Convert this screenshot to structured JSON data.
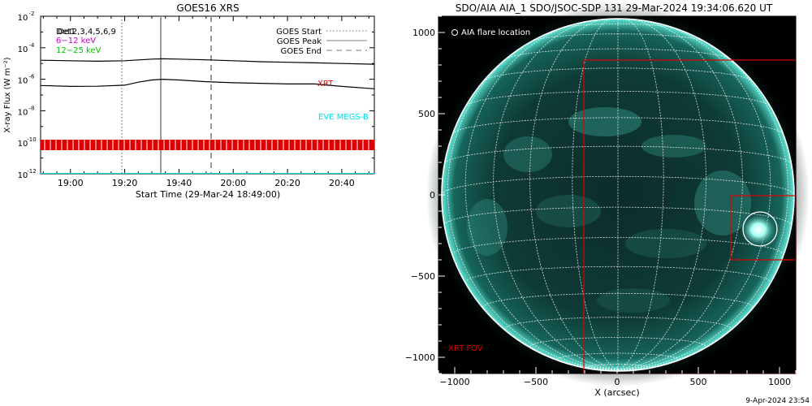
{
  "chart_data": [
    {
      "type": "line",
      "title": "GOES16 XRS",
      "xlabel": "Start Time (29-Mar-24 18:49:00)",
      "ylabel": "X-ray Flux (W m⁻²)",
      "y_scale": "log",
      "ylim": [
        1e-12,
        0.01
      ],
      "xlim_minutes_after_start": [
        0,
        123
      ],
      "x_tick_labels": [
        "19:00",
        "19:20",
        "19:40",
        "20:00",
        "20:20",
        "20:40"
      ],
      "y_tick_labels": [
        "10",
        "10",
        "10",
        "10",
        "10",
        "10"
      ],
      "y_tick_exponents": [
        "-2",
        "-4",
        "-6",
        "-8",
        "-10",
        "-12"
      ],
      "legend_left": [
        {
          "label": "Det1",
          "color": "#000000"
        },
        {
          "label": "Det2,3,4,5,6,9",
          "color": "#000000"
        },
        {
          "label": "6−12 keV",
          "color": "#cc00cc"
        },
        {
          "label": "12−25 keV",
          "color": "#00c000"
        }
      ],
      "legend_right": [
        {
          "label": "GOES Start",
          "style": "dotted"
        },
        {
          "label": "GOES Peak",
          "style": "solid"
        },
        {
          "label": "GOES End",
          "style": "dashed"
        }
      ],
      "markers": {
        "start": "19:20",
        "peak": "19:34",
        "end": "19:53"
      },
      "annotations": [
        {
          "text": "XRT",
          "color": "#e00000"
        },
        {
          "text": "EVE MEGS-B",
          "color": "#00e0e0"
        }
      ],
      "series": [
        {
          "color": "#000000",
          "x": [
            "18:49",
            "19:00",
            "19:10",
            "19:20",
            "19:30",
            "19:34",
            "19:40",
            "19:50",
            "20:00",
            "20:10",
            "20:20",
            "20:30",
            "20:40",
            "20:52"
          ],
          "y": [
            1.6e-05,
            1.5e-05,
            1.4e-05,
            1.5e-05,
            1.9e-05,
            2e-05,
            1.9e-05,
            1.7e-05,
            1.5e-05,
            1.3e-05,
            1.2e-05,
            1.1e-05,
            1e-05,
            9e-06
          ]
        },
        {
          "color": "#000000",
          "x": [
            "18:49",
            "19:00",
            "19:10",
            "19:20",
            "19:25",
            "19:30",
            "19:34",
            "19:40",
            "19:50",
            "20:00",
            "20:10",
            "20:20",
            "20:30",
            "20:40",
            "20:52"
          ],
          "y": [
            4e-07,
            3.5e-07,
            3.6e-07,
            4.2e-07,
            6.5e-07,
            9e-07,
            1e-06,
            9e-07,
            7e-07,
            6e-07,
            5.5e-07,
            5e-07,
            5e-07,
            3.5e-07,
            2.5e-07
          ]
        },
        {
          "color": "#e00000",
          "y_const": 1e-10
        },
        {
          "color": "#00e0e0",
          "y_const": 1e-12
        }
      ]
    },
    {
      "type": "image",
      "title": "SDO/AIA AIA_1 SDO/JSOC-SDP 131 29-Mar-2024 19:34:06.620 UT",
      "xlabel": "X (arcsec)",
      "xlim": [
        -1100,
        1100
      ],
      "ylim": [
        -1100,
        1100
      ],
      "x_tick_labels": [
        "−1000",
        "−500",
        "0",
        "500",
        "1000"
      ],
      "y_tick_labels": [
        "1000",
        "500",
        "0",
        "−500",
        "−1000"
      ],
      "legend": "AIA flare location",
      "fov_label": "XRT FOV",
      "fov_color": "#e00000",
      "flare_location_arcsec": [
        870,
        -220
      ],
      "footer": "9-Apr-2024 23:54"
    }
  ]
}
